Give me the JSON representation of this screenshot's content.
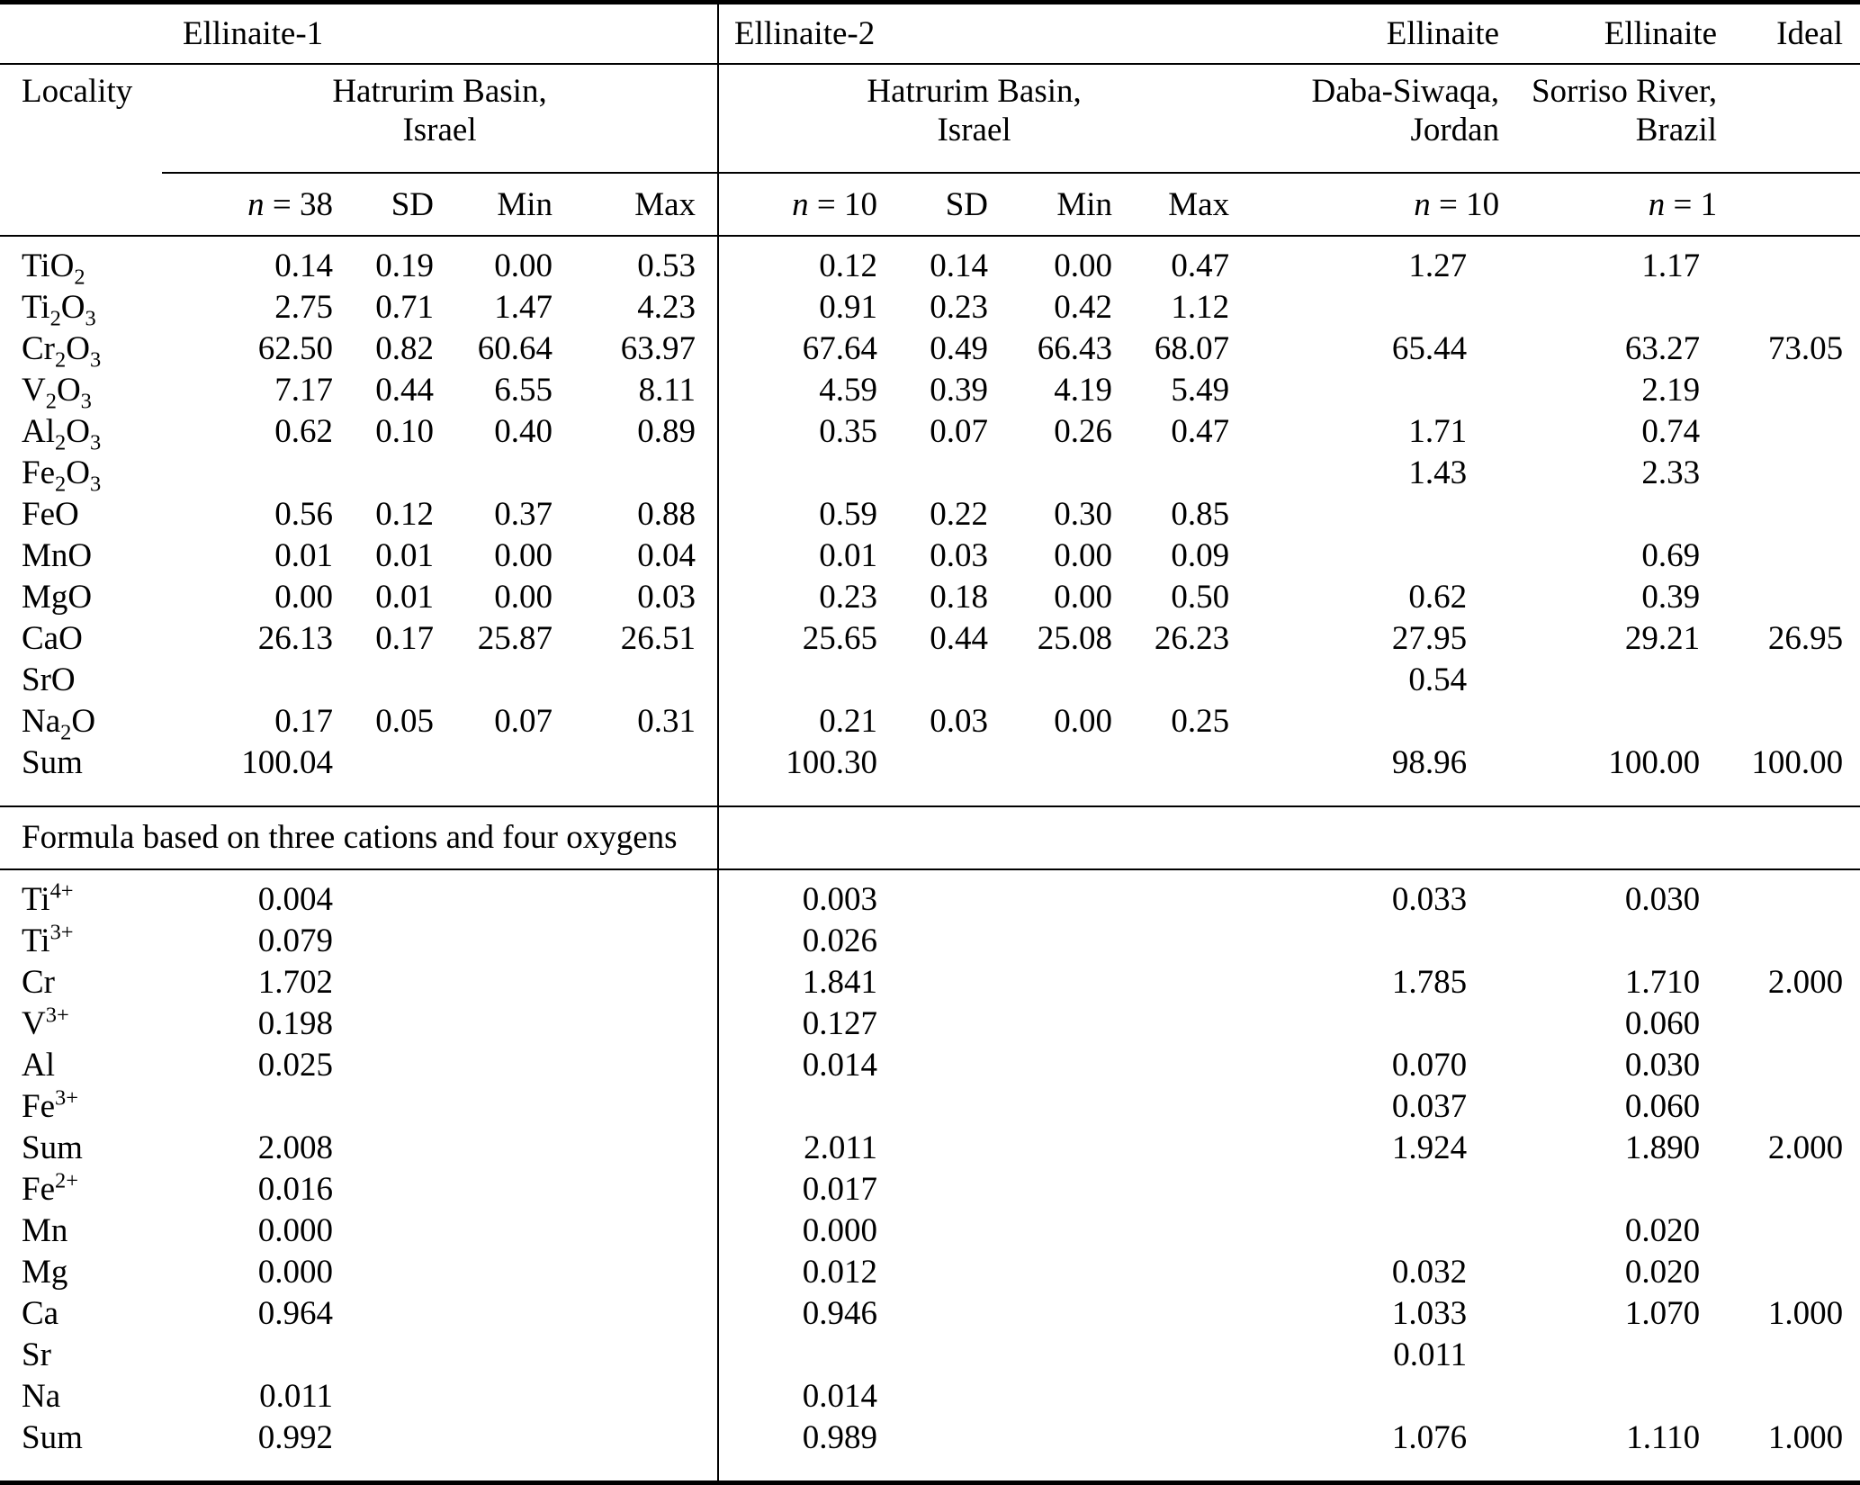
{
  "page": {
    "background_color": "#ffffff",
    "text_color": "#000000",
    "rule_color": "#000000"
  },
  "table": {
    "header": {
      "corner": "",
      "locality_label": "Locality",
      "groups": [
        {
          "name": "Ellinaite-1",
          "locality": [
            "Hatrurim Basin,",
            "Israel"
          ],
          "cols": [
            "n = 38",
            "SD",
            "Min",
            "Max"
          ]
        },
        {
          "name": "Ellinaite-2",
          "locality": [
            "Hatrurim Basin,",
            "Israel"
          ],
          "cols": [
            "n = 10",
            "SD",
            "Min",
            "Max"
          ]
        },
        {
          "name": "Ellinaite",
          "locality": [
            "Daba-Siwaqa,",
            "Jordan"
          ],
          "cols": [
            "n = 10"
          ]
        },
        {
          "name": "Ellinaite",
          "locality": [
            "Sorriso River,",
            "Brazil"
          ],
          "cols": [
            "n = 1"
          ]
        },
        {
          "name": "Ideal",
          "locality": [
            "",
            ""
          ],
          "cols": [
            ""
          ]
        }
      ]
    },
    "section_label": "Formula based on three cations and four oxygens",
    "oxide_rows": [
      {
        "label": "TiO_2",
        "values": [
          "0.14",
          "0.19",
          "0.00",
          "0.53",
          "0.12",
          "0.14",
          "0.00",
          "0.47",
          "1.27",
          "1.17",
          ""
        ]
      },
      {
        "label": "Ti_2O_3",
        "values": [
          "2.75",
          "0.71",
          "1.47",
          "4.23",
          "0.91",
          "0.23",
          "0.42",
          "1.12",
          "",
          "",
          ""
        ]
      },
      {
        "label": "Cr_2O_3",
        "values": [
          "62.50",
          "0.82",
          "60.64",
          "63.97",
          "67.64",
          "0.49",
          "66.43",
          "68.07",
          "65.44",
          "63.27",
          "73.05"
        ]
      },
      {
        "label": "V_2O_3",
        "values": [
          "7.17",
          "0.44",
          "6.55",
          "8.11",
          "4.59",
          "0.39",
          "4.19",
          "5.49",
          "",
          "2.19",
          ""
        ]
      },
      {
        "label": "Al_2O_3",
        "values": [
          "0.62",
          "0.10",
          "0.40",
          "0.89",
          "0.35",
          "0.07",
          "0.26",
          "0.47",
          "1.71",
          "0.74",
          ""
        ]
      },
      {
        "label": "Fe_2O_3",
        "values": [
          "",
          "",
          "",
          "",
          "",
          "",
          "",
          "",
          "1.43",
          "2.33",
          ""
        ]
      },
      {
        "label": "FeO",
        "values": [
          "0.56",
          "0.12",
          "0.37",
          "0.88",
          "0.59",
          "0.22",
          "0.30",
          "0.85",
          "",
          "",
          ""
        ]
      },
      {
        "label": "MnO",
        "values": [
          "0.01",
          "0.01",
          "0.00",
          "0.04",
          "0.01",
          "0.03",
          "0.00",
          "0.09",
          "",
          "0.69",
          ""
        ]
      },
      {
        "label": "MgO",
        "values": [
          "0.00",
          "0.01",
          "0.00",
          "0.03",
          "0.23",
          "0.18",
          "0.00",
          "0.50",
          "0.62",
          "0.39",
          ""
        ]
      },
      {
        "label": "CaO",
        "values": [
          "26.13",
          "0.17",
          "25.87",
          "26.51",
          "25.65",
          "0.44",
          "25.08",
          "26.23",
          "27.95",
          "29.21",
          "26.95"
        ]
      },
      {
        "label": "SrO",
        "values": [
          "",
          "",
          "",
          "",
          "",
          "",
          "",
          "",
          "0.54",
          "",
          ""
        ]
      },
      {
        "label": "Na_2O",
        "values": [
          "0.17",
          "0.05",
          "0.07",
          "0.31",
          "0.21",
          "0.03",
          "0.00",
          "0.25",
          "",
          "",
          ""
        ]
      },
      {
        "label": "Sum",
        "values": [
          "100.04",
          "",
          "",
          "",
          "100.30",
          "",
          "",
          "",
          "98.96",
          "100.00",
          "100.00"
        ]
      }
    ],
    "formula_rows": [
      {
        "label": "Ti^4+",
        "values": [
          "0.004",
          "",
          "",
          "",
          "0.003",
          "",
          "",
          "",
          "0.033",
          "0.030",
          ""
        ]
      },
      {
        "label": "Ti^3+",
        "values": [
          "0.079",
          "",
          "",
          "",
          "0.026",
          "",
          "",
          "",
          "",
          "",
          ""
        ]
      },
      {
        "label": "Cr",
        "values": [
          "1.702",
          "",
          "",
          "",
          "1.841",
          "",
          "",
          "",
          "1.785",
          "1.710",
          "2.000"
        ]
      },
      {
        "label": "V^3+",
        "values": [
          "0.198",
          "",
          "",
          "",
          "0.127",
          "",
          "",
          "",
          "",
          "0.060",
          ""
        ]
      },
      {
        "label": "Al",
        "values": [
          "0.025",
          "",
          "",
          "",
          "0.014",
          "",
          "",
          "",
          "0.070",
          "0.030",
          ""
        ]
      },
      {
        "label": "Fe^3+",
        "values": [
          "",
          "",
          "",
          "",
          "",
          "",
          "",
          "",
          "0.037",
          "0.060",
          ""
        ]
      },
      {
        "label": "Sum",
        "values": [
          "2.008",
          "",
          "",
          "",
          "2.011",
          "",
          "",
          "",
          "1.924",
          "1.890",
          "2.000"
        ]
      },
      {
        "label": "Fe^2+",
        "values": [
          "0.016",
          "",
          "",
          "",
          "0.017",
          "",
          "",
          "",
          "",
          "",
          ""
        ]
      },
      {
        "label": "Mn",
        "values": [
          "0.000",
          "",
          "",
          "",
          "0.000",
          "",
          "",
          "",
          "",
          "0.020",
          ""
        ]
      },
      {
        "label": "Mg",
        "values": [
          "0.000",
          "",
          "",
          "",
          "0.012",
          "",
          "",
          "",
          "0.032",
          "0.020",
          ""
        ]
      },
      {
        "label": "Ca",
        "values": [
          "0.964",
          "",
          "",
          "",
          "0.946",
          "",
          "",
          "",
          "1.033",
          "1.070",
          "1.000"
        ]
      },
      {
        "label": "Sr",
        "values": [
          "",
          "",
          "",
          "",
          "",
          "",
          "",
          "",
          "0.011",
          "",
          ""
        ]
      },
      {
        "label": "Na",
        "values": [
          "0.011",
          "",
          "",
          "",
          "0.014",
          "",
          "",
          "",
          "",
          "",
          ""
        ]
      },
      {
        "label": "Sum",
        "values": [
          "0.992",
          "",
          "",
          "",
          "0.989",
          "",
          "",
          "",
          "1.076",
          "1.110",
          "1.000"
        ]
      }
    ]
  }
}
